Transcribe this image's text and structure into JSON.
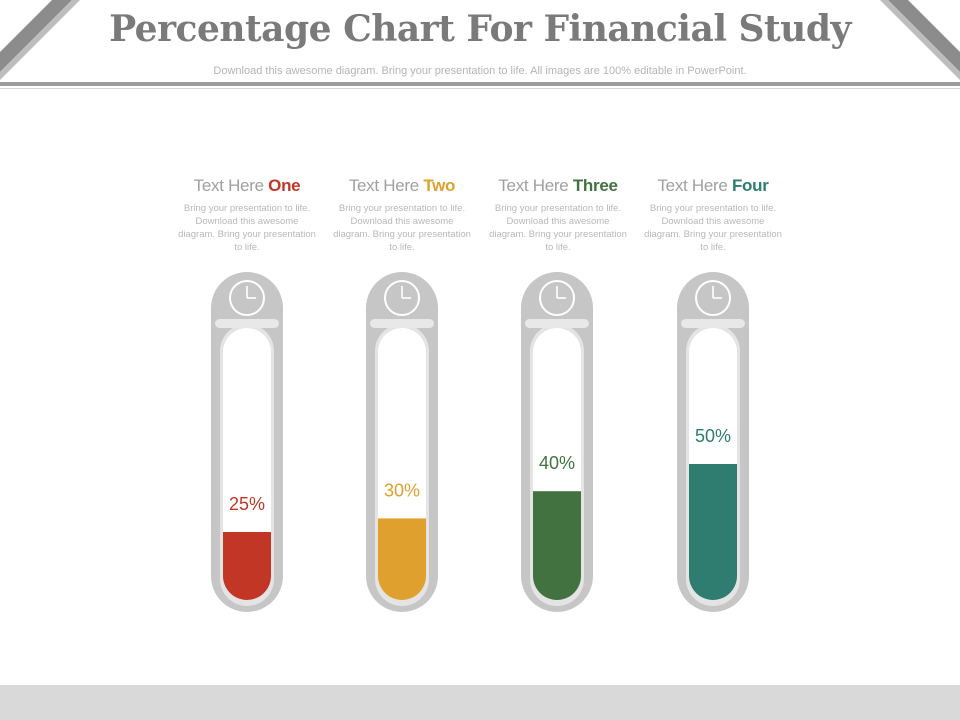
{
  "header": {
    "title": "Percentage Chart For Financial Study",
    "subtitle": "Download this awesome diagram. Bring your presentation to life. All images are 100% editable in PowerPoint."
  },
  "colors": {
    "tube_frame": "#c6c6c6",
    "tube_inner": "#ffffff",
    "corner_dark": "#8c8c8c",
    "corner_light": "#bdbdbd"
  },
  "items": [
    {
      "prefix": "Text Here ",
      "accent": "One",
      "body": "Bring your presentation to life. Download this awesome diagram. Bring your presentation to life.",
      "color": "#c23626"
    },
    {
      "prefix": "Text Here ",
      "accent": "Two",
      "body": "Bring your presentation to life. Download this awesome diagram. Bring your presentation to life.",
      "color": "#e0a02e"
    },
    {
      "prefix": "Text Here ",
      "accent": "Three",
      "body": "Bring your presentation to life. Download this awesome diagram. Bring your presentation to life.",
      "color": "#42723f"
    },
    {
      "prefix": "Text Here ",
      "accent": "Four",
      "body": "Bring your presentation to life. Download this awesome diagram. Bring your presentation to life.",
      "color": "#2e7d70"
    }
  ],
  "chart_data": {
    "type": "bar",
    "categories": [
      "One",
      "Two",
      "Three",
      "Four"
    ],
    "values": [
      25,
      30,
      40,
      50
    ],
    "value_labels": [
      "25%",
      "30%",
      "40%",
      "50%"
    ],
    "ylim": [
      0,
      100
    ],
    "title": "Percentage Chart For Financial Study",
    "xlabel": "",
    "ylabel": "",
    "grid": false,
    "legend": "none"
  }
}
